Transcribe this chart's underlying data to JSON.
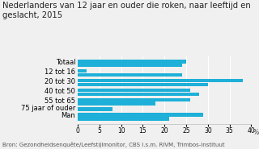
{
  "title": "Nederlanders van 12 jaar en ouder die roken, naar leeftijd en\ngeslacht, 2015",
  "categories": [
    "Totaal",
    "12 tot 16",
    "20 tot 30",
    "40 tot 50",
    "55 tot 65",
    "75 jaar of ouder",
    "Man"
  ],
  "bar_pairs": [
    [
      25,
      24
    ],
    [
      2,
      24
    ],
    [
      38,
      30
    ],
    [
      26,
      28
    ],
    [
      26,
      18
    ],
    [
      8,
      null
    ],
    [
      29,
      21
    ]
  ],
  "bar_color": "#1eb0d8",
  "xlabel": "%",
  "xlim": [
    0,
    40
  ],
  "xticks": [
    0,
    5,
    10,
    15,
    20,
    25,
    30,
    35,
    40
  ],
  "bg_color": "#f0f0f0",
  "source_text": "Bron: Gezondheidsenquête/Leefstijlmonitor, CBS i.s.m. RIVM, Trimbos-instituut",
  "title_fontsize": 7.2,
  "label_fontsize": 6.0,
  "tick_fontsize": 5.5,
  "source_fontsize": 5.0
}
